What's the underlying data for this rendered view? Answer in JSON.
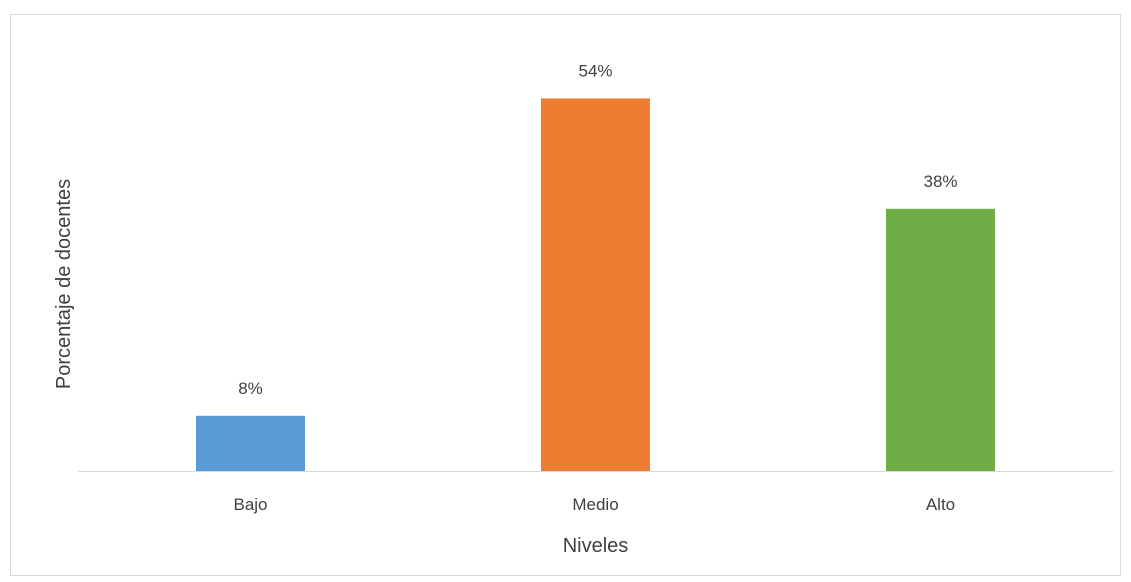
{
  "chart_data": {
    "type": "bar",
    "title": "",
    "xlabel": "Niveles",
    "ylabel": "Porcentaje de docentes",
    "categories": [
      "Bajo",
      "Medio",
      "Alto"
    ],
    "values": [
      8,
      54,
      38
    ],
    "data_labels": [
      "8%",
      "54%",
      "38%"
    ],
    "colors": [
      "#5B9BD5",
      "#ED7D31",
      "#70AD47"
    ],
    "ylim": [
      0,
      60
    ],
    "grid": false,
    "legend": "none"
  }
}
